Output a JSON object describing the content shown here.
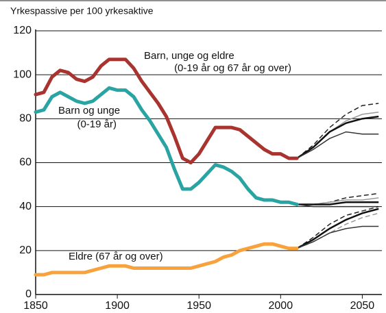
{
  "chart_data": {
    "type": "line",
    "title": "Yrkespassive per 100 yrkesaktive",
    "x": [
      1850,
      1855,
      1860,
      1865,
      1870,
      1875,
      1880,
      1885,
      1890,
      1895,
      1900,
      1905,
      1910,
      1915,
      1920,
      1925,
      1930,
      1935,
      1940,
      1945,
      1950,
      1955,
      1960,
      1965,
      1970,
      1975,
      1980,
      1985,
      1990,
      1995,
      2000,
      2005,
      2010
    ],
    "series": [
      {
        "color": "#a8332f",
        "values": [
          91,
          92,
          99,
          102,
          101,
          98,
          97,
          99,
          104,
          107,
          107,
          107,
          103,
          97,
          92,
          87,
          81,
          72,
          62,
          60,
          64,
          70,
          76,
          76,
          76,
          75,
          72,
          69,
          66,
          64,
          64,
          62,
          62
        ]
      },
      {
        "color": "#2aa3a3",
        "values": [
          83,
          84,
          90,
          92,
          90,
          88,
          87,
          88,
          91,
          94,
          93,
          93,
          90,
          84,
          79,
          73,
          67,
          57,
          48,
          48,
          51,
          55,
          59,
          58,
          56,
          53,
          48,
          44,
          43,
          43,
          42,
          42,
          41
        ]
      },
      {
        "color": "#f7a23c",
        "values": [
          9,
          9,
          10,
          10,
          10,
          10,
          10,
          11,
          12,
          13,
          13,
          13,
          12,
          12,
          12,
          12,
          12,
          12,
          12,
          12,
          13,
          14,
          15,
          17,
          18,
          20,
          21,
          22,
          23,
          23,
          22,
          21,
          21
        ]
      }
    ],
    "projection_x": [
      2010,
      2020,
      2030,
      2040,
      2050,
      2060
    ],
    "projections": [
      {
        "color": "#222222",
        "dash": true,
        "values": [
          62,
          68,
          76,
          82,
          86,
          87
        ]
      },
      {
        "color": "#999999",
        "dash": false,
        "values": [
          62,
          67,
          74,
          79,
          82,
          83
        ]
      },
      {
        "color": "#111111",
        "dash": false,
        "values": [
          62,
          67,
          74,
          78,
          80,
          81
        ]
      },
      {
        "color": "#333333",
        "dash": false,
        "values": [
          62,
          66,
          71,
          74,
          73,
          73
        ]
      },
      {
        "color": "#222222",
        "dash": true,
        "values": [
          41,
          41,
          42,
          44,
          45,
          46
        ]
      },
      {
        "color": "#999999",
        "dash": false,
        "values": [
          41,
          41,
          42,
          43,
          43,
          44
        ]
      },
      {
        "color": "#111111",
        "dash": false,
        "values": [
          41,
          41,
          41,
          42,
          42,
          42
        ]
      },
      {
        "color": "#333333",
        "dash": false,
        "values": [
          41,
          40,
          40,
          40,
          40,
          40
        ]
      },
      {
        "color": "#222222",
        "dash": true,
        "values": [
          21,
          26,
          32,
          36,
          38,
          40
        ]
      },
      {
        "color": "#111111",
        "dash": false,
        "values": [
          21,
          25,
          30,
          34,
          37,
          39
        ]
      },
      {
        "color": "#999999",
        "dash": true,
        "values": [
          21,
          24,
          28,
          32,
          35,
          37
        ]
      },
      {
        "color": "#333333",
        "dash": false,
        "values": [
          21,
          24,
          28,
          30,
          31,
          31
        ]
      }
    ],
    "annotations": [
      "Barn, unge og eldre",
      "(0-19 år og 67 år og over)",
      "Barn og unge",
      "(0-19 år)",
      "Eldre (67 år og over)"
    ],
    "xlim": [
      1850,
      2062
    ],
    "ylim": [
      0,
      120
    ],
    "xticks": [
      1850,
      1900,
      1950,
      2000,
      2050
    ],
    "yticks": [
      0,
      20,
      40,
      60,
      80,
      100,
      120
    ],
    "grid": true
  }
}
